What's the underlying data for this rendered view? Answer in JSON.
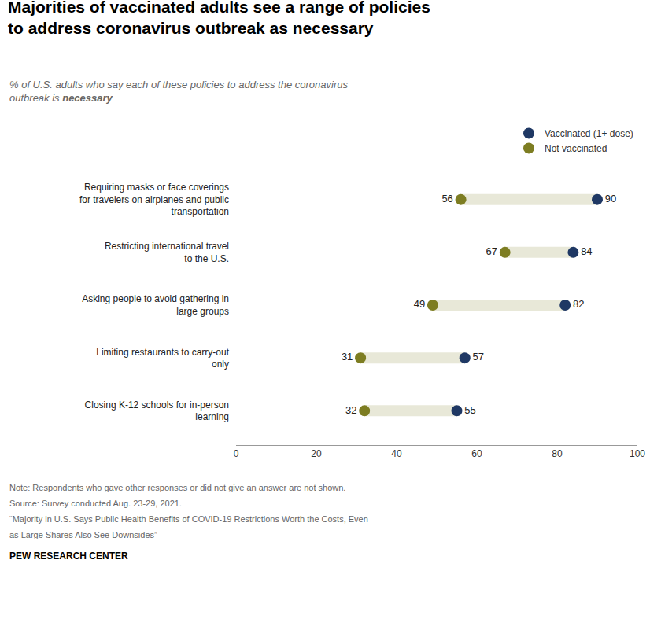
{
  "chart_data": {
    "type": "dumbbell",
    "title": "Majorities of vaccinated adults see a range of policies\nto address coronavirus outbreak as necessary",
    "subtitle": "% of U.S. adults who say each of these policies to address the coronavirus\noutbreak is necessary",
    "categories": [
      "Requiring masks or face coverings\nfor travelers on airplanes and public\ntransportation",
      "Restricting international travel\nto the U.S.",
      "Asking people to avoid gathering in\nlarge groups",
      "Limiting restaurants to carry-out\nonly",
      "Closing K-12 schools for in-person\nlearning"
    ],
    "series": [
      {
        "name": "Vaccinated (1+ dose)",
        "color": "#1f3864",
        "values": [
          90,
          84,
          82,
          57,
          55
        ]
      },
      {
        "name": "Not vaccinated",
        "color": "#7d7d22",
        "values": [
          56,
          67,
          49,
          31,
          32
        ]
      }
    ],
    "color": "#e8e8d8",
    "orientation": "horizontal",
    "xlim": [
      0,
      100
    ],
    "xticks": [
      0,
      20,
      40,
      60,
      80,
      100
    ],
    "grid": false,
    "legend": "upper right",
    "data_labels": true,
    "notes": [
      "Note: Respondents who gave other responses or did not give an answer are not shown.",
      "Source: Survey conducted Aug. 23-29, 2021.",
      "“Majority in U.S. Says Public Health Benefits of COVID-19 Restrictions Worth the Costs, Even",
      "as Large Shares Also See Downsides”"
    ],
    "source": "PEW RESEARCH CENTER"
  }
}
